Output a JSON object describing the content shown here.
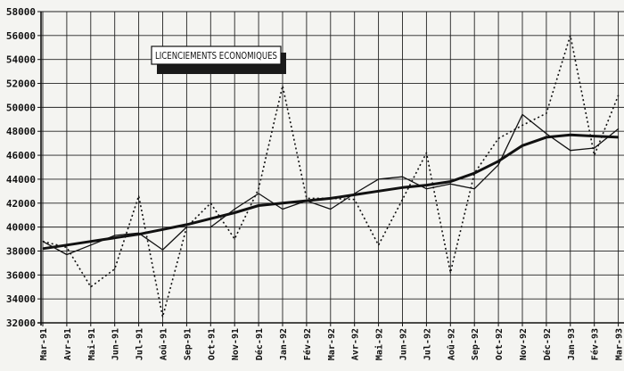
{
  "chart_data": {
    "type": "line",
    "legend_label": "LICENCIEMENTS ECONOMIQUES",
    "legend_position": "top-left",
    "grid": true,
    "ylim": [
      32000,
      58000
    ],
    "y_ticks": [
      32000,
      34000,
      36000,
      38000,
      40000,
      42000,
      44000,
      46000,
      48000,
      50000,
      52000,
      54000,
      56000,
      58000
    ],
    "categories": [
      "Mar-91",
      "Avr-91",
      "Mai-91",
      "Jun-91",
      "Jul-91",
      "Aoû-91",
      "Sep-91",
      "Oct-91",
      "Nov-91",
      "Déc-91",
      "Jan-92",
      "Fév-92",
      "Mar-92",
      "Avr-92",
      "Mai-92",
      "Jun-92",
      "Jul-92",
      "Aoû-92",
      "Sep-92",
      "Oct-92",
      "Nov-92",
      "Déc-92",
      "Jan-93",
      "Fév-93",
      "Mar-93"
    ],
    "series": [
      {
        "style": "dotted",
        "values": [
          38800,
          38300,
          35000,
          36500,
          42600,
          32500,
          40000,
          42000,
          39000,
          43200,
          51800,
          42400,
          42400,
          42300,
          38500,
          42300,
          46200,
          36200,
          44500,
          47400,
          48500,
          49500,
          56000,
          46000,
          51000
        ]
      },
      {
        "style": "solid",
        "values": [
          38800,
          37700,
          38500,
          39300,
          39500,
          38100,
          40000,
          40000,
          41500,
          42800,
          41500,
          42200,
          41500,
          42800,
          44000,
          44200,
          43200,
          43600,
          43200,
          45200,
          49400,
          47800,
          46400,
          46600,
          48200
        ]
      },
      {
        "style": "bold",
        "values": [
          38200,
          38500,
          38800,
          39100,
          39400,
          39800,
          40200,
          40700,
          41200,
          41800,
          42000,
          42200,
          42400,
          42700,
          43000,
          43300,
          43500,
          43800,
          44500,
          45500,
          46800,
          47500,
          47700,
          47600,
          47500
        ]
      }
    ]
  }
}
